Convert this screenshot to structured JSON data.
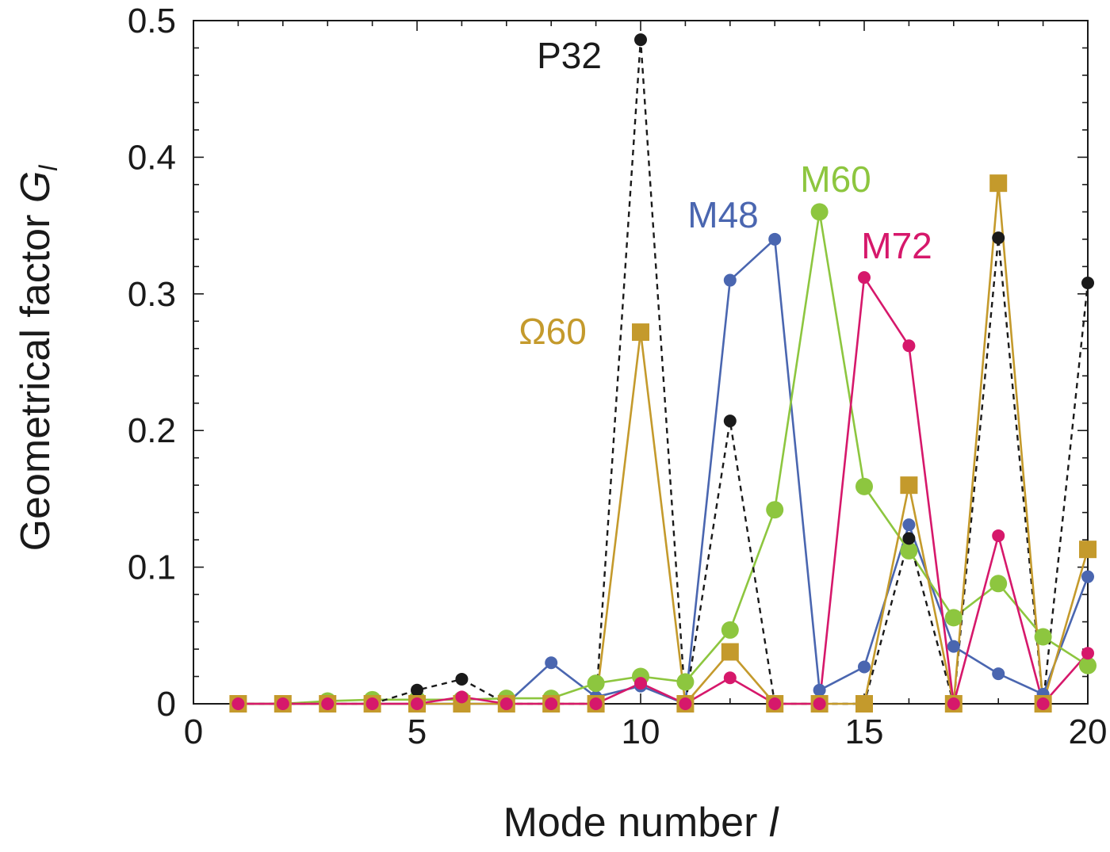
{
  "chart_data": {
    "type": "line",
    "xlabel": "Mode number",
    "xlabel_italic": "l",
    "ylabel": "Geometrical factor",
    "ylabel_italic": "G",
    "ylabel_sub": "l",
    "xlim": [
      0,
      20
    ],
    "ylim": [
      0,
      0.5
    ],
    "xticks": [
      0,
      5,
      10,
      15,
      20
    ],
    "xtick_labels": [
      "0",
      "5",
      "10",
      "15",
      "20"
    ],
    "yticks": [
      0,
      0.1,
      0.2,
      0.3,
      0.4,
      0.5
    ],
    "ytick_labels": [
      "0",
      "0.1",
      "0.2",
      "0.3",
      "0.4",
      "0.5"
    ],
    "grid": false,
    "series": [
      {
        "name": "P32",
        "color": "#1a1a1a",
        "marker": "circle-small",
        "line": "dashed",
        "x": [
          1,
          2,
          3,
          4,
          5,
          6,
          7,
          8,
          9,
          10,
          11,
          12,
          13,
          14,
          15,
          16,
          17,
          18,
          19,
          20
        ],
        "y": [
          0,
          0,
          0,
          0,
          0.01,
          0.018,
          0,
          0,
          0,
          0.486,
          0,
          0.207,
          0,
          0,
          0,
          0.121,
          0,
          0.341,
          0,
          0.308
        ]
      },
      {
        "name": "M48",
        "color": "#4a66b0",
        "marker": "circle-small",
        "line": "solid",
        "x": [
          1,
          2,
          3,
          4,
          5,
          6,
          7,
          8,
          9,
          10,
          11,
          12,
          13,
          14,
          15,
          16,
          17,
          18,
          19,
          20
        ],
        "y": [
          0,
          0,
          0,
          0,
          0,
          0,
          0,
          0.03,
          0.005,
          0.013,
          0,
          0.31,
          0.34,
          0.01,
          0.027,
          0.131,
          0.042,
          0.022,
          0.007,
          0.093
        ]
      },
      {
        "name": "M60",
        "color": "#8dc63f",
        "marker": "circle-large",
        "line": "solid",
        "x": [
          1,
          2,
          3,
          4,
          5,
          6,
          7,
          8,
          9,
          10,
          11,
          12,
          13,
          14,
          15,
          16,
          17,
          18,
          19,
          20
        ],
        "y": [
          0,
          0,
          0.002,
          0.003,
          0.003,
          0.003,
          0.004,
          0.004,
          0.015,
          0.02,
          0.016,
          0.054,
          0.142,
          0.36,
          0.159,
          0.112,
          0.063,
          0.088,
          0.049,
          0.028
        ]
      },
      {
        "name": "M72",
        "color": "#d6186b",
        "marker": "circle-small",
        "line": "solid",
        "x": [
          1,
          2,
          3,
          4,
          5,
          6,
          7,
          8,
          9,
          10,
          11,
          12,
          13,
          14,
          15,
          16,
          17,
          18,
          19,
          20
        ],
        "y": [
          0,
          0,
          0,
          0,
          0,
          0.005,
          0,
          0,
          0,
          0.015,
          0,
          0.019,
          0,
          0,
          0.312,
          0.262,
          0,
          0.123,
          0,
          0.037
        ]
      },
      {
        "name": "Ω60",
        "color": "#c49a2c",
        "marker": "square",
        "line": "solid",
        "x": [
          1,
          2,
          3,
          4,
          5,
          6,
          7,
          8,
          9,
          10,
          11,
          12,
          13,
          14,
          15,
          16,
          17,
          18,
          19,
          20
        ],
        "y": [
          0,
          0,
          0,
          0,
          0,
          0,
          0,
          0,
          0,
          0.272,
          0,
          0.038,
          0,
          0,
          0,
          0.16,
          0,
          0.381,
          0,
          0.113
        ]
      }
    ]
  }
}
